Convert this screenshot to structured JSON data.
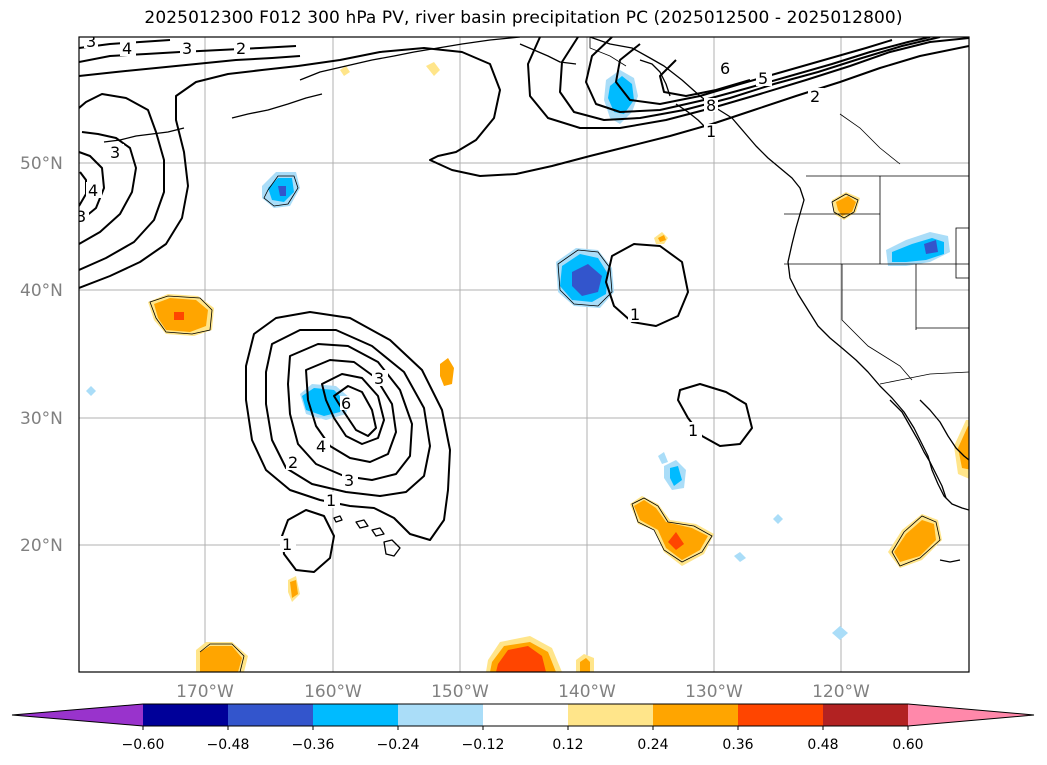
{
  "title": "2025012300 F012 300 hPa PV, river basin precipitation PC (2025012500 - 2025012800)",
  "lat_labels": [
    "50°N",
    "40°N",
    "30°N",
    "20°N"
  ],
  "lon_labels": [
    "170°W",
    "160°W",
    "150°W",
    "140°W",
    "130°W",
    "120°W"
  ],
  "colorbar": {
    "tick_labels": [
      "−0.60",
      "−0.48",
      "−0.36",
      "−0.24",
      "−0.12",
      "0.12",
      "0.24",
      "0.36",
      "0.48",
      "0.60"
    ],
    "colors": [
      "#9933cc",
      "#000099",
      "#3355cc",
      "#00bbff",
      "#aaddf8",
      "#ffffff",
      "#ffe58a",
      "#ffa500",
      "#ff4500",
      "#b22222",
      "#ff88aa"
    ]
  },
  "contour_labels": [
    "3",
    "4",
    "3",
    "2",
    "6",
    "5",
    "2",
    "8",
    "1",
    "3",
    "4",
    "3",
    "1",
    "3",
    "6",
    "4",
    "2",
    "3",
    "1",
    "1",
    "1"
  ]
}
